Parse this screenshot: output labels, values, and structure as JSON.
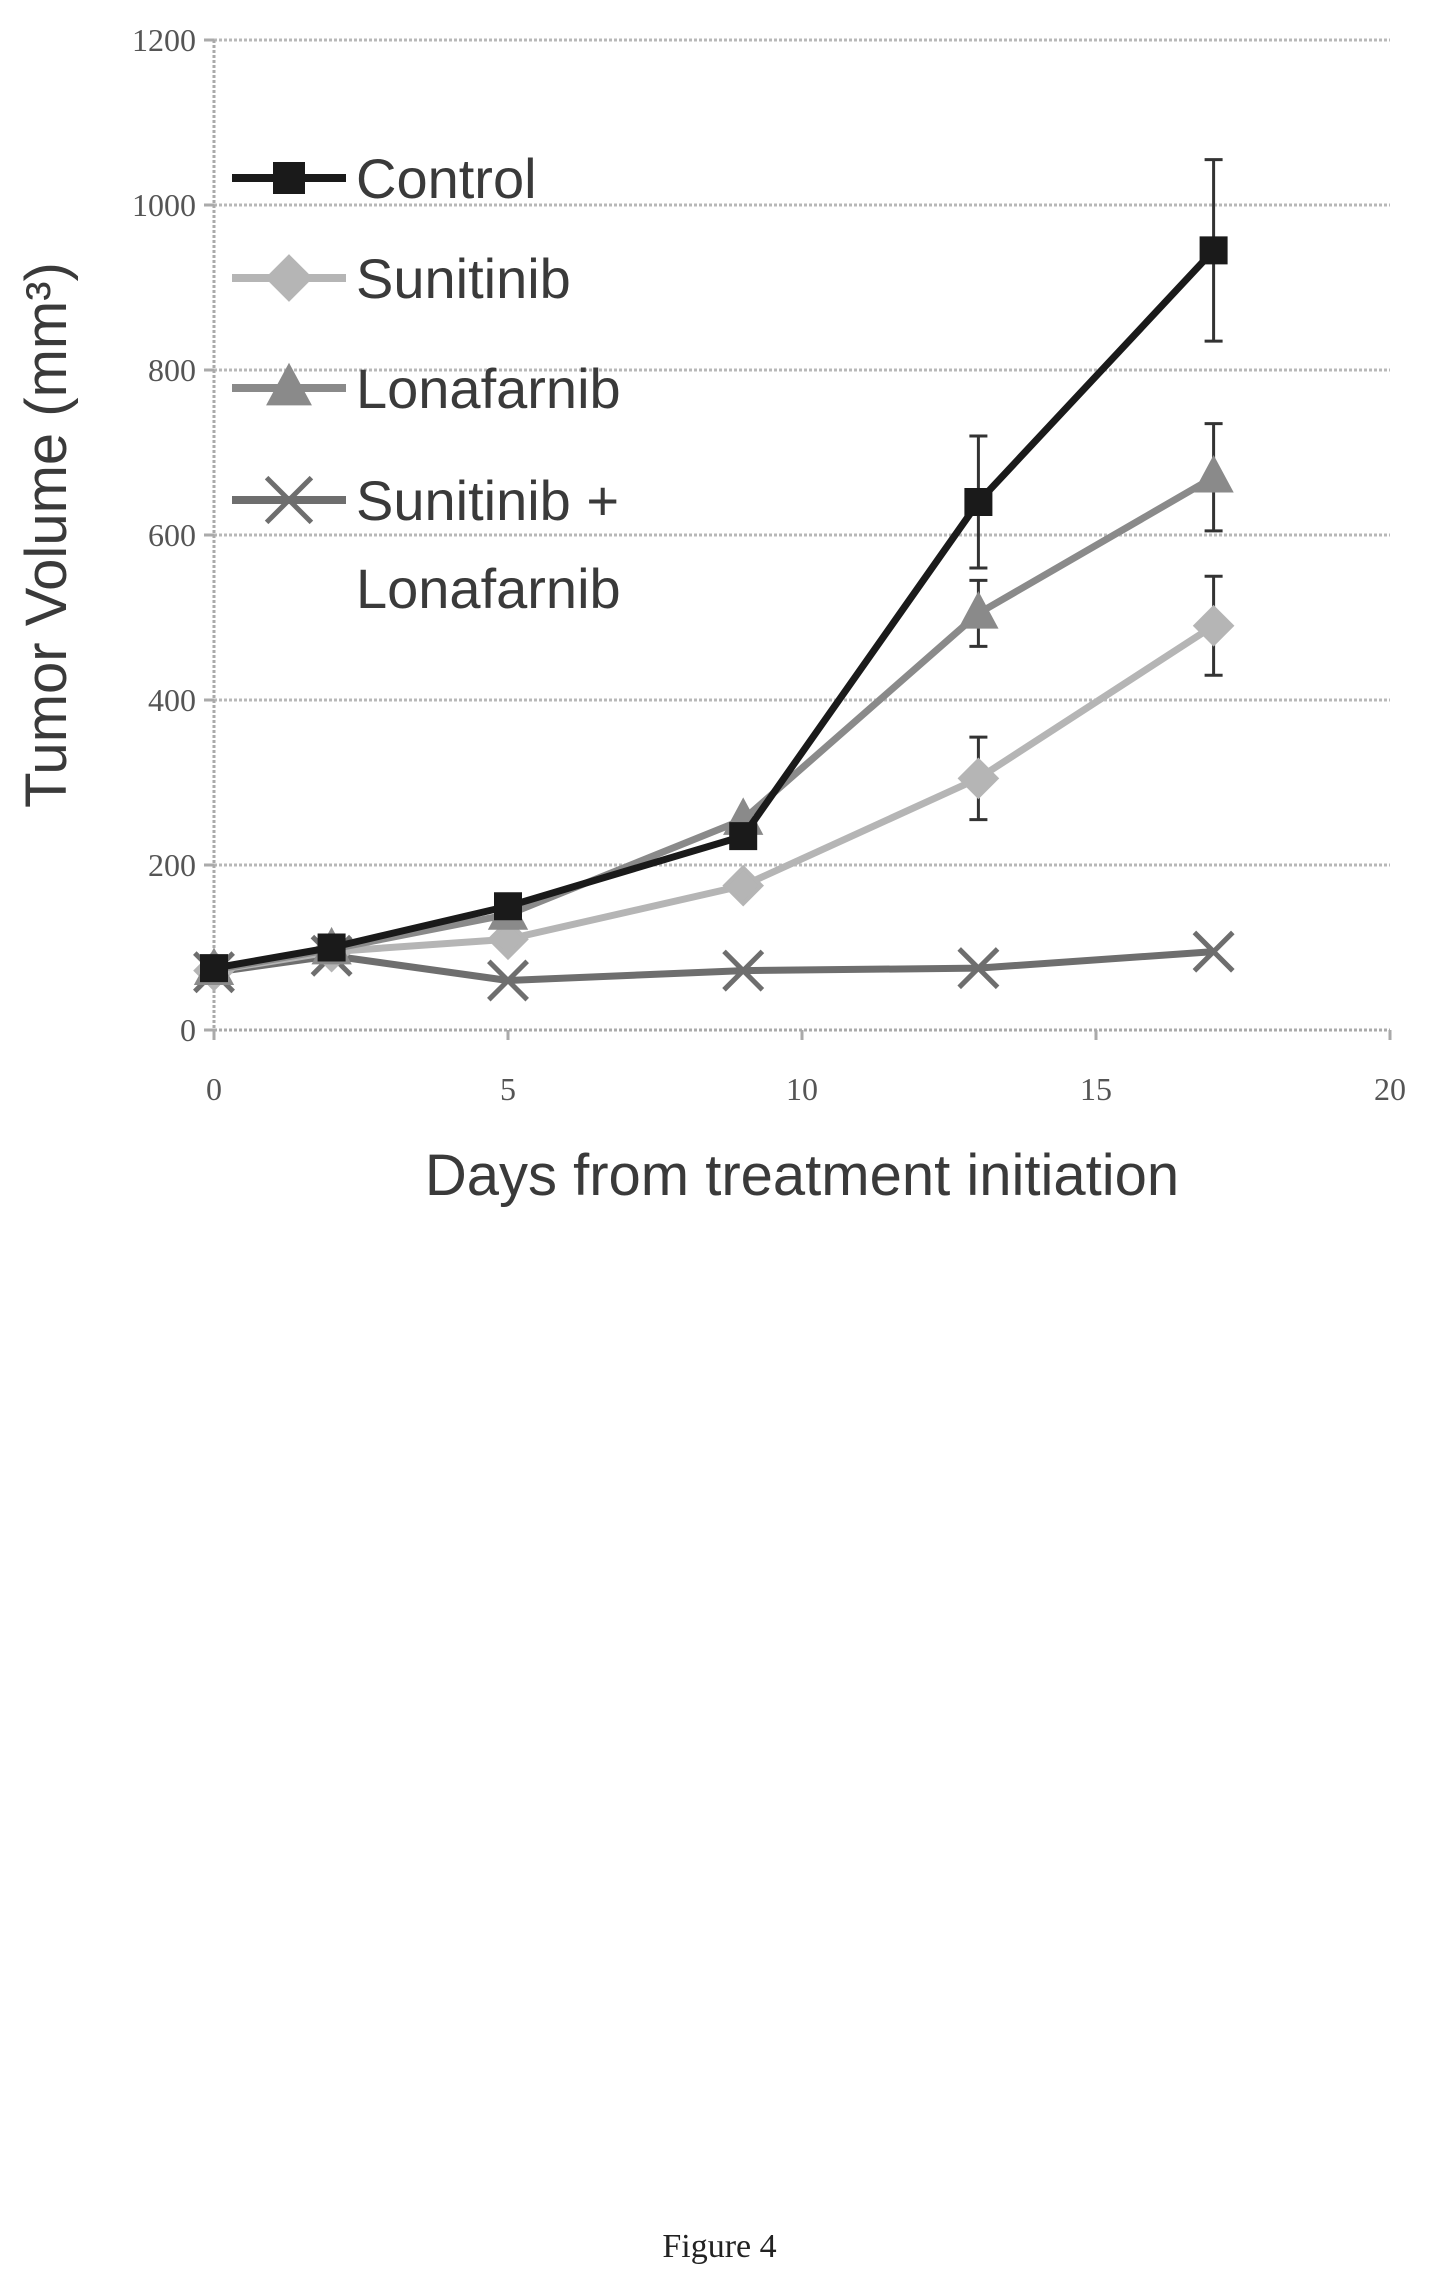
{
  "chart_data": {
    "type": "line",
    "title": "",
    "xlabel": "Days from treatment initiation",
    "ylabel": "Tumor Volume (mm³)",
    "xlim": [
      0,
      20
    ],
    "ylim": [
      0,
      1200
    ],
    "xticks": [
      "0",
      "5",
      "10",
      "15",
      "20"
    ],
    "yticks": [
      "0",
      "200",
      "400",
      "600",
      "800",
      "1000",
      "1200"
    ],
    "grid": "horizontal",
    "legend_position": "top-left",
    "series": [
      {
        "name": "Control",
        "marker": "square",
        "color": "#1a1a1a",
        "x": [
          0,
          2,
          5,
          9,
          13,
          17
        ],
        "y": [
          75,
          100,
          150,
          235,
          640,
          945
        ],
        "err": [
          0,
          0,
          0,
          0,
          80,
          110
        ]
      },
      {
        "name": "Sunitinib",
        "marker": "diamond",
        "color": "#b5b5b5",
        "x": [
          0,
          2,
          5,
          9,
          13,
          17
        ],
        "y": [
          72,
          95,
          110,
          175,
          305,
          490
        ],
        "err": [
          0,
          0,
          0,
          0,
          50,
          60
        ]
      },
      {
        "name": "Lonafarnib",
        "marker": "triangle",
        "color": "#8a8a8a",
        "x": [
          0,
          2,
          5,
          9,
          13,
          17
        ],
        "y": [
          73,
          98,
          140,
          255,
          505,
          670
        ],
        "err": [
          0,
          0,
          0,
          0,
          40,
          65
        ]
      },
      {
        "name": "Sunitinib + Lonafarnib",
        "legend_lines": [
          "Sunitinib +",
          "Lonafarnib"
        ],
        "marker": "x",
        "color": "#6e6e6e",
        "x": [
          0,
          2,
          5,
          9,
          13,
          17
        ],
        "y": [
          70,
          90,
          60,
          72,
          75,
          95
        ],
        "err": [
          0,
          0,
          0,
          0,
          0,
          0
        ]
      }
    ]
  },
  "caption": "Figure 4"
}
